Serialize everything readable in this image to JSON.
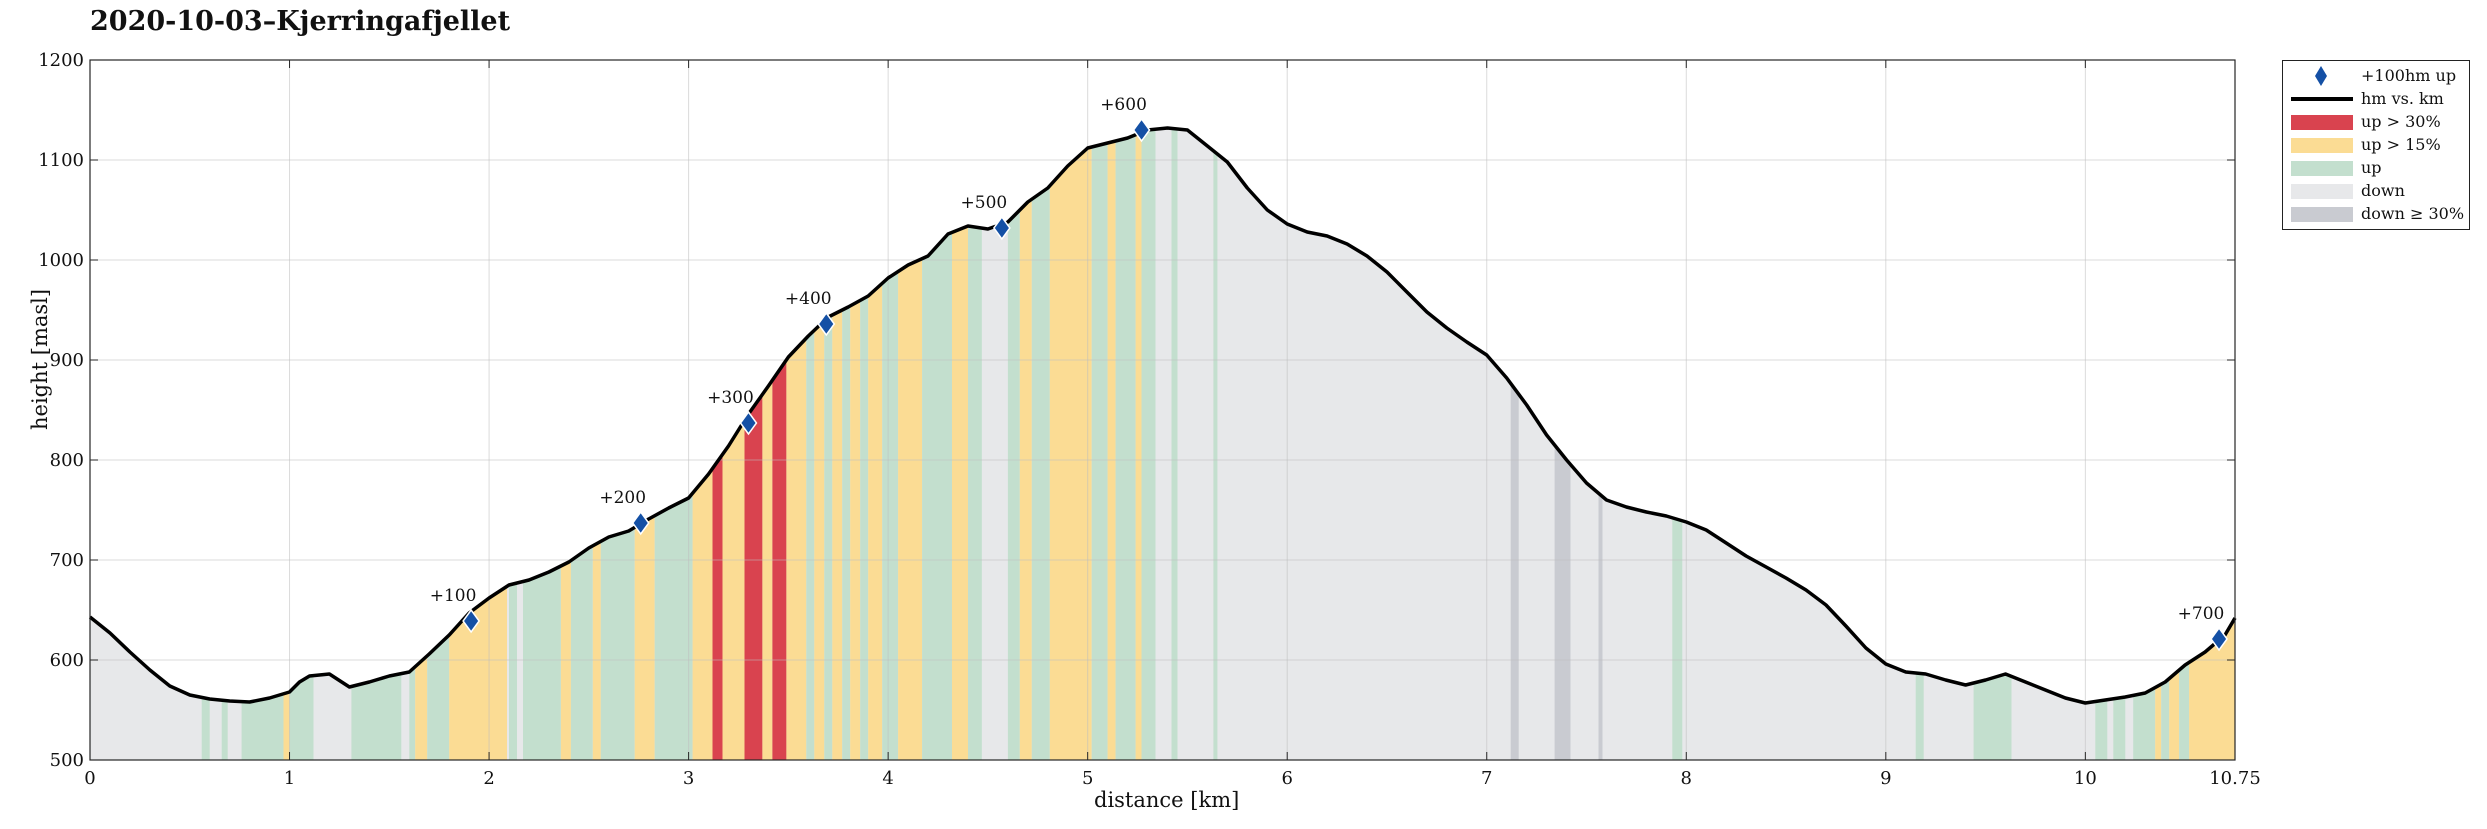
{
  "chart_data": {
    "type": "area",
    "title": "2020-10-03–Kjerringafjellet",
    "xlabel": "distance [km]",
    "ylabel": "height [masl]",
    "xlim": [
      0,
      10.75
    ],
    "ylim": [
      500,
      1200
    ],
    "x_ticks": [
      "0",
      "1",
      "2",
      "3",
      "4",
      "5",
      "6",
      "7",
      "8",
      "9",
      "10",
      "10.75"
    ],
    "x_tick_values": [
      0,
      1,
      2,
      3,
      4,
      5,
      6,
      7,
      8,
      9,
      10,
      10.75
    ],
    "y_ticks": [
      "500",
      "600",
      "700",
      "800",
      "900",
      "1000",
      "1100",
      "1200"
    ],
    "y_tick_values": [
      500,
      600,
      700,
      800,
      900,
      1000,
      1100,
      1200
    ],
    "grid": true,
    "legend_position": "outside-right",
    "legend": [
      {
        "key": "marker",
        "label": "+100hm up"
      },
      {
        "key": "line",
        "label": "hm vs. km"
      },
      {
        "key": "steep_up",
        "label": "up > 30%"
      },
      {
        "key": "mod_up",
        "label": "up > 15%"
      },
      {
        "key": "up",
        "label": "up"
      },
      {
        "key": "down",
        "label": "down"
      },
      {
        "key": "steep_down",
        "label": "down ≥ 30%"
      }
    ],
    "colors": {
      "steep_up": "#d9434f",
      "mod_up": "#fbdc94",
      "up": "#c3dfce",
      "down": "#e7e8ea",
      "steep_down": "#c9cbd1",
      "line": "#000000",
      "marker": "#1450a5"
    },
    "profile": {
      "x": [
        0,
        0.1,
        0.2,
        0.3,
        0.4,
        0.5,
        0.6,
        0.7,
        0.8,
        0.9,
        1.0,
        1.05,
        1.1,
        1.2,
        1.3,
        1.4,
        1.5,
        1.6,
        1.7,
        1.8,
        1.9,
        2.0,
        2.1,
        2.2,
        2.3,
        2.4,
        2.5,
        2.6,
        2.7,
        2.8,
        2.9,
        3.0,
        3.1,
        3.2,
        3.3,
        3.4,
        3.5,
        3.6,
        3.7,
        3.8,
        3.9,
        4.0,
        4.1,
        4.2,
        4.3,
        4.4,
        4.5,
        4.6,
        4.7,
        4.8,
        4.9,
        5.0,
        5.1,
        5.2,
        5.3,
        5.4,
        5.5,
        5.6,
        5.7,
        5.8,
        5.9,
        6.0,
        6.1,
        6.2,
        6.3,
        6.4,
        6.5,
        6.6,
        6.7,
        6.8,
        6.9,
        7.0,
        7.1,
        7.2,
        7.3,
        7.4,
        7.5,
        7.6,
        7.7,
        7.8,
        7.9,
        8.0,
        8.1,
        8.2,
        8.3,
        8.4,
        8.5,
        8.6,
        8.7,
        8.8,
        8.9,
        9.0,
        9.1,
        9.2,
        9.3,
        9.4,
        9.5,
        9.6,
        9.7,
        9.8,
        9.9,
        10.0,
        10.1,
        10.2,
        10.3,
        10.4,
        10.5,
        10.6,
        10.7,
        10.75
      ],
      "y": [
        643,
        627,
        608,
        590,
        574,
        565,
        561,
        559,
        558,
        562,
        568,
        578,
        584,
        586,
        573,
        578,
        584,
        588,
        606,
        625,
        647,
        662,
        675,
        680,
        688,
        698,
        712,
        723,
        729,
        741,
        752,
        762,
        786,
        814,
        846,
        874,
        903,
        924,
        943,
        953,
        964,
        982,
        995,
        1004,
        1026,
        1034,
        1031,
        1038,
        1058,
        1072,
        1094,
        1112,
        1117,
        1122,
        1130,
        1132,
        1130,
        1114,
        1098,
        1072,
        1050,
        1036,
        1028,
        1024,
        1016,
        1004,
        988,
        968,
        948,
        932,
        918,
        905,
        882,
        855,
        825,
        800,
        777,
        760,
        753,
        748,
        744,
        738,
        730,
        717,
        704,
        693,
        682,
        670,
        655,
        634,
        612,
        596,
        588,
        586,
        580,
        575,
        580,
        586,
        578,
        570,
        562,
        557,
        560,
        563,
        567,
        578,
        595,
        608,
        625,
        642
      ]
    },
    "segments": [
      {
        "x0": 0.56,
        "x1": 0.6,
        "type": "up"
      },
      {
        "x0": 0.66,
        "x1": 0.69,
        "type": "up"
      },
      {
        "x0": 0.76,
        "x1": 0.97,
        "type": "up"
      },
      {
        "x0": 0.97,
        "x1": 1.0,
        "type": "mod_up"
      },
      {
        "x0": 1.0,
        "x1": 1.12,
        "type": "up"
      },
      {
        "x0": 1.31,
        "x1": 1.56,
        "type": "up"
      },
      {
        "x0": 1.6,
        "x1": 1.63,
        "type": "up"
      },
      {
        "x0": 1.63,
        "x1": 1.69,
        "type": "mod_up"
      },
      {
        "x0": 1.69,
        "x1": 1.8,
        "type": "up"
      },
      {
        "x0": 1.8,
        "x1": 2.09,
        "type": "mod_up"
      },
      {
        "x0": 2.1,
        "x1": 2.14,
        "type": "up"
      },
      {
        "x0": 2.17,
        "x1": 2.36,
        "type": "up"
      },
      {
        "x0": 2.36,
        "x1": 2.41,
        "type": "mod_up"
      },
      {
        "x0": 2.41,
        "x1": 2.52,
        "type": "up"
      },
      {
        "x0": 2.52,
        "x1": 2.56,
        "type": "mod_up"
      },
      {
        "x0": 2.56,
        "x1": 2.73,
        "type": "up"
      },
      {
        "x0": 2.73,
        "x1": 2.83,
        "type": "mod_up"
      },
      {
        "x0": 2.83,
        "x1": 3.02,
        "type": "up"
      },
      {
        "x0": 3.02,
        "x1": 3.12,
        "type": "mod_up"
      },
      {
        "x0": 3.12,
        "x1": 3.17,
        "type": "steep_up"
      },
      {
        "x0": 3.17,
        "x1": 3.28,
        "type": "mod_up"
      },
      {
        "x0": 3.28,
        "x1": 3.37,
        "type": "steep_up"
      },
      {
        "x0": 3.37,
        "x1": 3.42,
        "type": "mod_up"
      },
      {
        "x0": 3.42,
        "x1": 3.49,
        "type": "steep_up"
      },
      {
        "x0": 3.49,
        "x1": 3.59,
        "type": "mod_up"
      },
      {
        "x0": 3.59,
        "x1": 3.63,
        "type": "up"
      },
      {
        "x0": 3.63,
        "x1": 3.68,
        "type": "mod_up"
      },
      {
        "x0": 3.68,
        "x1": 3.72,
        "type": "up"
      },
      {
        "x0": 3.72,
        "x1": 3.77,
        "type": "mod_up"
      },
      {
        "x0": 3.77,
        "x1": 3.81,
        "type": "up"
      },
      {
        "x0": 3.81,
        "x1": 3.86,
        "type": "mod_up"
      },
      {
        "x0": 3.86,
        "x1": 3.9,
        "type": "up"
      },
      {
        "x0": 3.9,
        "x1": 3.97,
        "type": "mod_up"
      },
      {
        "x0": 3.97,
        "x1": 4.05,
        "type": "up"
      },
      {
        "x0": 4.05,
        "x1": 4.17,
        "type": "mod_up"
      },
      {
        "x0": 4.17,
        "x1": 4.32,
        "type": "up"
      },
      {
        "x0": 4.32,
        "x1": 4.4,
        "type": "mod_up"
      },
      {
        "x0": 4.4,
        "x1": 4.47,
        "type": "up"
      },
      {
        "x0": 4.47,
        "x1": 4.6,
        "type": "down"
      },
      {
        "x0": 4.6,
        "x1": 4.66,
        "type": "up"
      },
      {
        "x0": 4.66,
        "x1": 4.72,
        "type": "mod_up"
      },
      {
        "x0": 4.72,
        "x1": 4.81,
        "type": "up"
      },
      {
        "x0": 4.81,
        "x1": 5.02,
        "type": "mod_up"
      },
      {
        "x0": 5.02,
        "x1": 5.1,
        "type": "up"
      },
      {
        "x0": 5.1,
        "x1": 5.14,
        "type": "mod_up"
      },
      {
        "x0": 5.14,
        "x1": 5.24,
        "type": "up"
      },
      {
        "x0": 5.24,
        "x1": 5.27,
        "type": "mod_up"
      },
      {
        "x0": 5.27,
        "x1": 5.34,
        "type": "up"
      },
      {
        "x0": 5.42,
        "x1": 5.45,
        "type": "up"
      },
      {
        "x0": 5.63,
        "x1": 5.65,
        "type": "up"
      },
      {
        "x0": 7.12,
        "x1": 7.16,
        "type": "steep_down"
      },
      {
        "x0": 7.34,
        "x1": 7.42,
        "type": "steep_down"
      },
      {
        "x0": 7.56,
        "x1": 7.58,
        "type": "steep_down"
      },
      {
        "x0": 7.93,
        "x1": 7.98,
        "type": "up"
      },
      {
        "x0": 9.15,
        "x1": 9.19,
        "type": "up"
      },
      {
        "x0": 9.44,
        "x1": 9.63,
        "type": "up"
      },
      {
        "x0": 10.05,
        "x1": 10.11,
        "type": "up"
      },
      {
        "x0": 10.14,
        "x1": 10.2,
        "type": "up"
      },
      {
        "x0": 10.24,
        "x1": 10.35,
        "type": "up"
      },
      {
        "x0": 10.35,
        "x1": 10.38,
        "type": "mod_up"
      },
      {
        "x0": 10.38,
        "x1": 10.42,
        "type": "up"
      },
      {
        "x0": 10.42,
        "x1": 10.47,
        "type": "mod_up"
      },
      {
        "x0": 10.47,
        "x1": 10.52,
        "type": "up"
      },
      {
        "x0": 10.52,
        "x1": 10.75,
        "type": "mod_up"
      }
    ],
    "markers": [
      {
        "x": 1.91,
        "y": 639,
        "label": "+100"
      },
      {
        "x": 2.76,
        "y": 737,
        "label": "+200"
      },
      {
        "x": 3.3,
        "y": 837,
        "label": "+300"
      },
      {
        "x": 3.69,
        "y": 936,
        "label": "+400"
      },
      {
        "x": 4.57,
        "y": 1032,
        "label": "+500"
      },
      {
        "x": 5.27,
        "y": 1130,
        "label": "+600"
      },
      {
        "x": 10.67,
        "y": 621,
        "label": "+700"
      }
    ]
  }
}
